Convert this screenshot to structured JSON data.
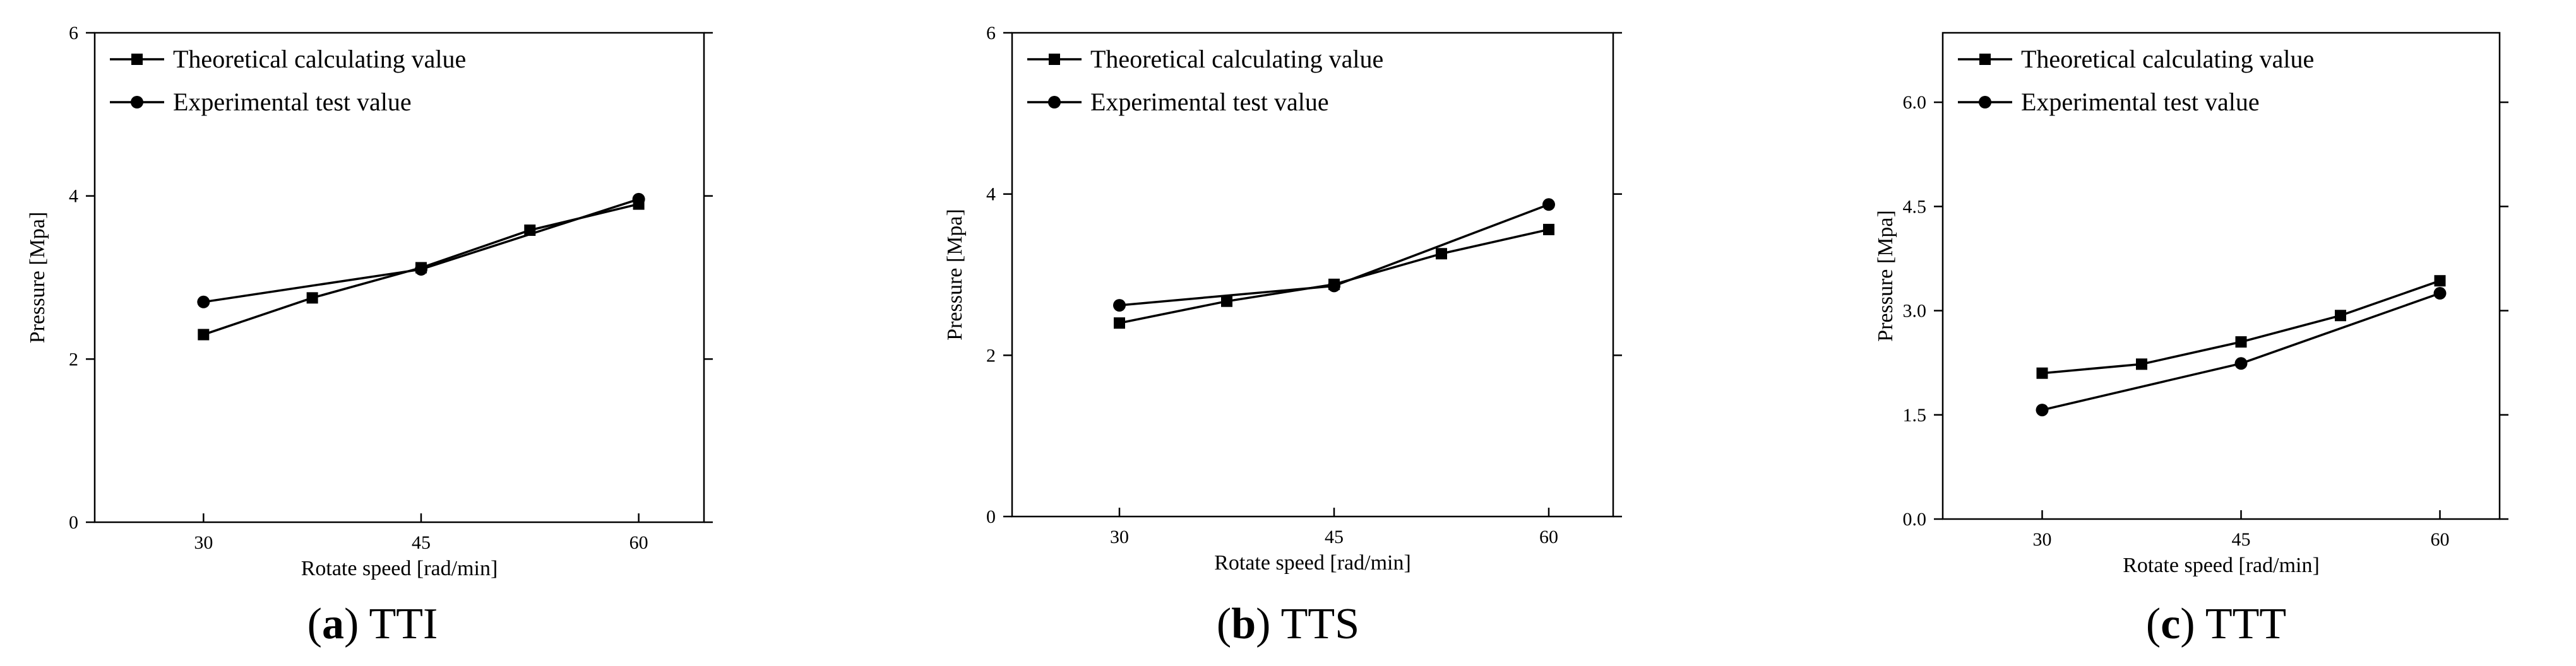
{
  "chart_data": [
    {
      "type": "line",
      "caption_letter": "a",
      "caption_name": "TTI",
      "xlabel": "Rotate speed [rad/min]",
      "ylabel": "Pressure [Mpa]",
      "xlim": [
        22.5,
        64.5
      ],
      "ylim": [
        0,
        6
      ],
      "xticks": [
        30,
        45,
        60
      ],
      "xtick_labels": [
        "30",
        "45",
        "60"
      ],
      "yticks": [
        0,
        2,
        4,
        6
      ],
      "ytick_labels": [
        "0",
        "2",
        "4",
        "6"
      ],
      "legend_position": "top-left",
      "series": [
        {
          "name": "Theoretical calculating value",
          "marker": "square",
          "x": [
            30,
            37.5,
            45,
            52.5,
            60
          ],
          "values": [
            2.3,
            2.75,
            3.12,
            3.58,
            3.9
          ]
        },
        {
          "name": "Experimental test value",
          "marker": "circle",
          "x": [
            30,
            45,
            60
          ],
          "values": [
            2.7,
            3.1,
            3.96
          ]
        }
      ]
    },
    {
      "type": "line",
      "caption_letter": "b",
      "caption_name": "TTS",
      "xlabel": "Rotate speed [rad/min]",
      "ylabel": "Pressure [Mpa]",
      "xlim": [
        22.5,
        64.5
      ],
      "ylim": [
        0,
        6
      ],
      "xticks": [
        30,
        45,
        60
      ],
      "xtick_labels": [
        "30",
        "45",
        "60"
      ],
      "yticks": [
        0,
        2,
        4,
        6
      ],
      "ytick_labels": [
        "0",
        "2",
        "4",
        "6"
      ],
      "legend_position": "top-left",
      "series": [
        {
          "name": "Theoretical calculating value",
          "marker": "square",
          "x": [
            30,
            37.5,
            45,
            52.5,
            60
          ],
          "values": [
            2.4,
            2.67,
            2.88,
            3.26,
            3.56
          ]
        },
        {
          "name": "Experimental test value",
          "marker": "circle",
          "x": [
            30,
            45,
            60
          ],
          "values": [
            2.62,
            2.86,
            3.87
          ]
        }
      ]
    },
    {
      "type": "line",
      "caption_letter": "c",
      "caption_name": "TTT",
      "xlabel": "Rotate speed [rad/min]",
      "ylabel": "Pressure [Mpa]",
      "xlim": [
        22.5,
        64.5
      ],
      "ylim": [
        0,
        7
      ],
      "xticks": [
        30,
        45,
        60
      ],
      "xtick_labels": [
        "30",
        "45",
        "60"
      ],
      "yticks": [
        0,
        1.5,
        3,
        4.5,
        6
      ],
      "ytick_labels": [
        "0.0",
        "1.5",
        "3.0",
        "4.5",
        "6.0"
      ],
      "legend_position": "top-left",
      "series": [
        {
          "name": "Theoretical calculating value",
          "marker": "square",
          "x": [
            30,
            37.5,
            45,
            52.5,
            60
          ],
          "values": [
            2.1,
            2.23,
            2.55,
            2.93,
            3.43
          ]
        },
        {
          "name": "Experimental test value",
          "marker": "circle",
          "x": [
            30,
            45,
            60
          ],
          "values": [
            1.57,
            2.24,
            3.25
          ]
        }
      ]
    }
  ]
}
